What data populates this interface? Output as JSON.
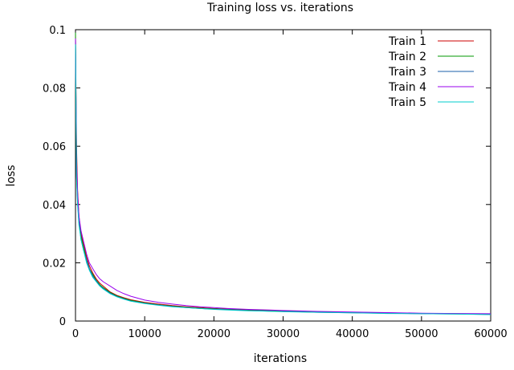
{
  "chart_data": {
    "type": "line",
    "title": "Training loss vs. iterations",
    "xlabel": "iterations",
    "ylabel": "loss",
    "xlim": [
      0,
      60000
    ],
    "ylim": [
      0,
      0.1
    ],
    "x_ticks": [
      0,
      10000,
      20000,
      30000,
      40000,
      50000,
      60000
    ],
    "y_ticks": [
      0,
      0.02,
      0.04,
      0.06,
      0.08,
      0.1
    ],
    "x_tick_labels": [
      "0",
      "10000",
      "20000",
      "30000",
      "40000",
      "50000",
      "60000"
    ],
    "y_tick_labels": [
      "0",
      "0.02",
      "0.04",
      "0.06",
      "0.08",
      "0.1"
    ],
    "grid": false,
    "legend": "top-right",
    "x": [
      0,
      150,
      300,
      500,
      800,
      1200,
      1600,
      2000,
      2500,
      3000,
      3500,
      4000,
      5000,
      6000,
      7000,
      8000,
      10000,
      12000,
      14000,
      16000,
      18000,
      20000,
      22000,
      25000,
      28000,
      30000,
      35000,
      40000,
      45000,
      50000,
      55000,
      60000
    ],
    "series": [
      {
        "name": "Train 1",
        "color": "#cc0000",
        "values": [
          0.098,
          0.06,
          0.045,
          0.036,
          0.03,
          0.026,
          0.022,
          0.019,
          0.0165,
          0.0145,
          0.013,
          0.012,
          0.01,
          0.0088,
          0.008,
          0.0073,
          0.0064,
          0.0058,
          0.0053,
          0.0049,
          0.0046,
          0.0043,
          0.0041,
          0.0038,
          0.0036,
          0.0035,
          0.0032,
          0.003,
          0.0028,
          0.0026,
          0.0025,
          0.0024
        ]
      },
      {
        "name": "Train 2",
        "color": "#009900",
        "values": [
          0.099,
          0.052,
          0.042,
          0.034,
          0.029,
          0.025,
          0.021,
          0.018,
          0.016,
          0.014,
          0.0125,
          0.0115,
          0.0098,
          0.0086,
          0.0078,
          0.0071,
          0.0062,
          0.0056,
          0.0051,
          0.0047,
          0.0044,
          0.0042,
          0.004,
          0.0037,
          0.0035,
          0.0034,
          0.0031,
          0.0029,
          0.0027,
          0.0026,
          0.0025,
          0.0023
        ]
      },
      {
        "name": "Train 3",
        "color": "#1a5fa8",
        "values": [
          0.096,
          0.05,
          0.041,
          0.034,
          0.028,
          0.024,
          0.021,
          0.018,
          0.0155,
          0.0138,
          0.0122,
          0.0112,
          0.0096,
          0.0084,
          0.0076,
          0.0069,
          0.0061,
          0.0055,
          0.005,
          0.0046,
          0.0043,
          0.0041,
          0.0039,
          0.0036,
          0.0034,
          0.0033,
          0.003,
          0.0028,
          0.0027,
          0.0025,
          0.0024,
          0.0023
        ]
      },
      {
        "name": "Train 4",
        "color": "#9900ee",
        "values": [
          0.097,
          0.055,
          0.044,
          0.036,
          0.031,
          0.027,
          0.023,
          0.02,
          0.018,
          0.016,
          0.0145,
          0.0135,
          0.012,
          0.0105,
          0.0094,
          0.0085,
          0.0072,
          0.0064,
          0.0058,
          0.0053,
          0.0049,
          0.0046,
          0.0043,
          0.004,
          0.0038,
          0.0036,
          0.0033,
          0.0031,
          0.0029,
          0.0027,
          0.0026,
          0.0025
        ]
      },
      {
        "name": "Train 5",
        "color": "#00cccc",
        "values": [
          0.095,
          0.049,
          0.04,
          0.033,
          0.028,
          0.024,
          0.02,
          0.0175,
          0.015,
          0.0135,
          0.012,
          0.011,
          0.0094,
          0.0083,
          0.0075,
          0.0068,
          0.006,
          0.0054,
          0.0049,
          0.0046,
          0.0043,
          0.004,
          0.0038,
          0.0035,
          0.0034,
          0.0032,
          0.003,
          0.0028,
          0.0026,
          0.0025,
          0.0024,
          0.0022
        ]
      }
    ]
  }
}
